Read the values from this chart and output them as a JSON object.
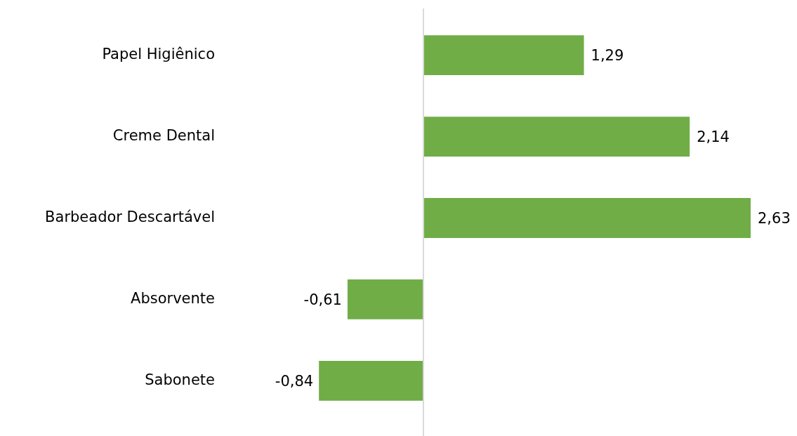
{
  "chart_data": {
    "type": "bar",
    "orientation": "horizontal",
    "categories": [
      "Papel Higiênico",
      "Creme Dental",
      "Barbeador Descartável",
      "Absorvente",
      "Sabonete"
    ],
    "values": [
      1.29,
      2.14,
      2.63,
      -0.61,
      -0.84
    ],
    "value_labels": [
      "1,29",
      "2,14",
      "2,63",
      "-0,61",
      "-0,84"
    ],
    "color": "#70ad47"
  }
}
